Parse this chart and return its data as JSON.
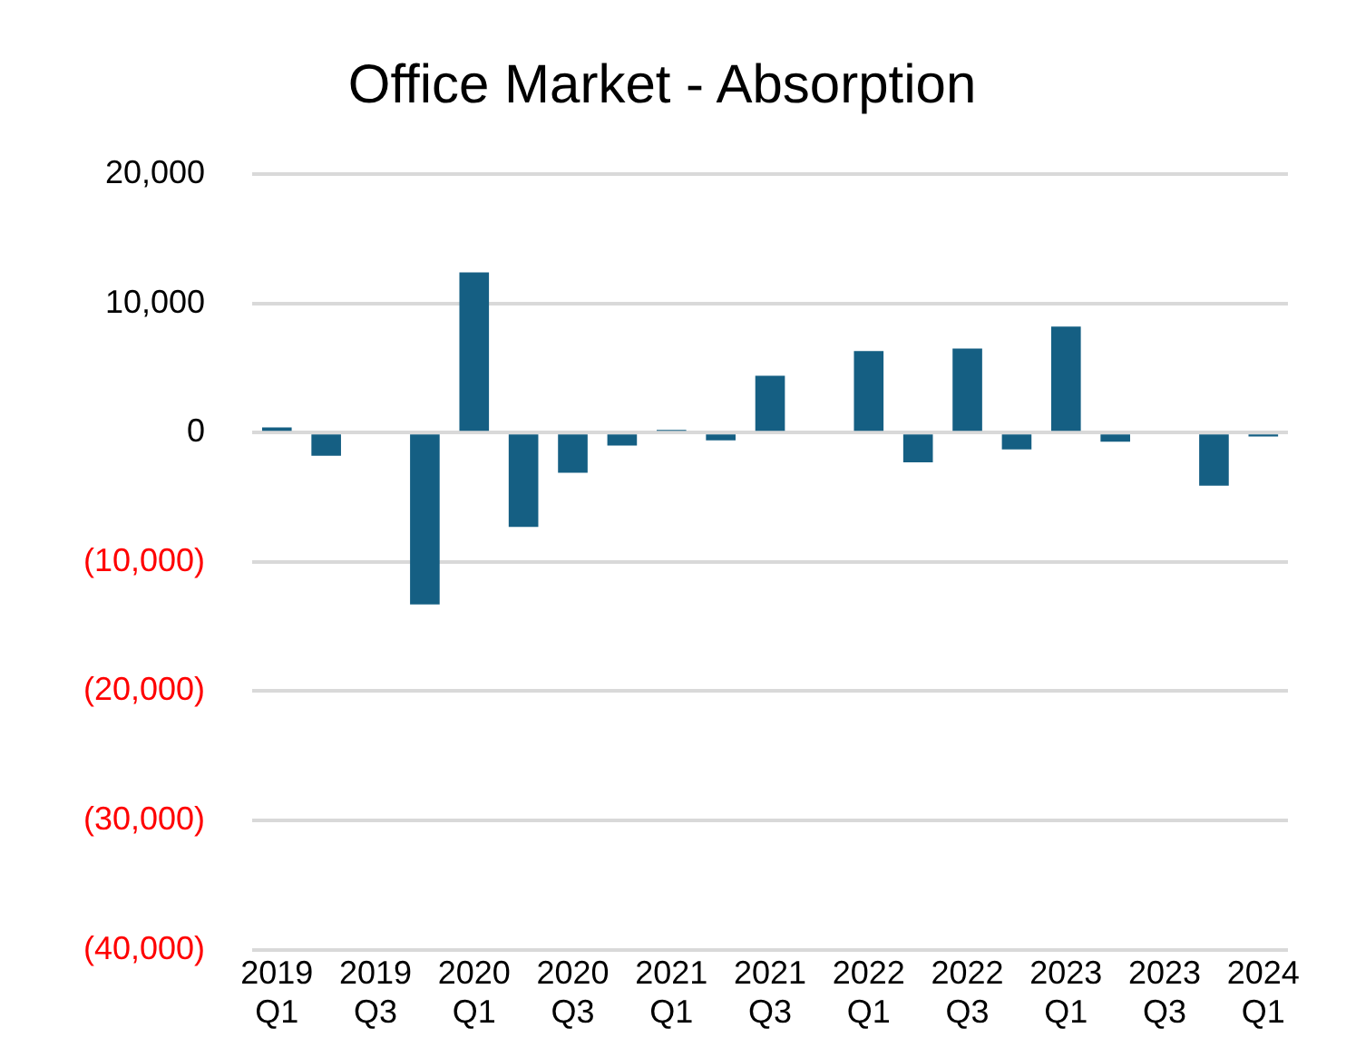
{
  "chart_data": {
    "type": "bar",
    "title": "Office Market - Absorption",
    "categories": [
      "2019 Q1",
      null,
      "2019 Q3",
      null,
      "2020 Q1",
      null,
      "2020 Q3",
      null,
      "2021 Q1",
      null,
      "2021 Q3",
      null,
      "2022 Q1",
      null,
      "2022 Q3",
      null,
      "2023 Q1",
      null,
      "2023 Q3",
      null,
      "2024 Q1"
    ],
    "values": [
      400,
      -1800,
      null,
      -13300,
      12400,
      -7300,
      -3100,
      -1000,
      200,
      -600,
      4400,
      0,
      6300,
      -2300,
      6500,
      -1300,
      8200,
      -700,
      0,
      -4100,
      -300
    ],
    "color": "#155f83",
    "ylim": [
      -40000,
      20000
    ],
    "yticks": [
      {
        "value": -40000,
        "label": "(40,000)"
      },
      {
        "value": -30000,
        "label": "(30,000)"
      },
      {
        "value": -20000,
        "label": "(20,000)"
      },
      {
        "value": -10000,
        "label": "(10,000)"
      },
      {
        "value": 0,
        "label": "0"
      },
      {
        "value": 10000,
        "label": "10,000"
      },
      {
        "value": 20000,
        "label": "20,000"
      }
    ],
    "grid": "y",
    "legend": false
  }
}
